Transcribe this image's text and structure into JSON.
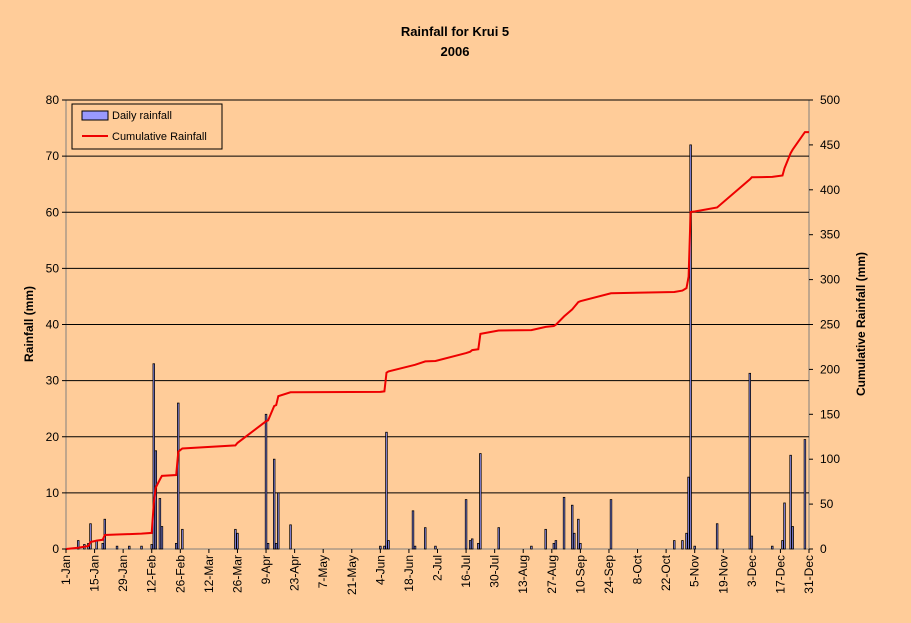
{
  "chart_data": {
    "type": "bar+line",
    "title": "Rainfall for Krui 5",
    "subtitle": "2006",
    "ylabel": "Rainfall (mm)",
    "y2label": "Cumulative Rainfall (mm)",
    "ylim": [
      0,
      80
    ],
    "y2lim": [
      0,
      500
    ],
    "yticks": [
      "0",
      "10",
      "20",
      "30",
      "40",
      "50",
      "60",
      "70",
      "80"
    ],
    "y2ticks": [
      "0",
      "50",
      "100",
      "150",
      "200",
      "250",
      "300",
      "350",
      "400",
      "450",
      "500"
    ],
    "xlim_day_of_year": [
      1,
      365
    ],
    "x_tick_labels": [
      "1-Jan",
      "15-Jan",
      "29-Jan",
      "12-Feb",
      "26-Feb",
      "12-Mar",
      "26-Mar",
      "9-Apr",
      "23-Apr",
      "7-May",
      "21-May",
      "4-Jun",
      "18-Jun",
      "2-Jul",
      "16-Jul",
      "30-Jul",
      "13-Aug",
      "27-Aug",
      "10-Sep",
      "24-Sep",
      "8-Oct",
      "22-Oct",
      "5-Nov",
      "19-Nov",
      "3-Dec",
      "17-Dec",
      "31-Dec"
    ],
    "grid": true,
    "legend_position": "top-left",
    "colors": {
      "bars": "#9999ff",
      "bar_outline": "#000000",
      "line": "#ee0000",
      "background": "#ffcc99"
    },
    "series": [
      {
        "name": "Daily rainfall",
        "kind": "bar",
        "axis": "left",
        "points": [
          {
            "day": 7,
            "value": 1.5
          },
          {
            "day": 10,
            "value": 0.8
          },
          {
            "day": 12,
            "value": 1.0
          },
          {
            "day": 13,
            "value": 4.5
          },
          {
            "day": 16,
            "value": 1.5
          },
          {
            "day": 19,
            "value": 1.0
          },
          {
            "day": 20,
            "value": 5.3
          },
          {
            "day": 26,
            "value": 0.5
          },
          {
            "day": 32,
            "value": 0.5
          },
          {
            "day": 38,
            "value": 0.5
          },
          {
            "day": 43,
            "value": 0.8
          },
          {
            "day": 44,
            "value": 33.0
          },
          {
            "day": 45,
            "value": 17.5
          },
          {
            "day": 47,
            "value": 9.0
          },
          {
            "day": 48,
            "value": 4.0
          },
          {
            "day": 55,
            "value": 1.0
          },
          {
            "day": 56,
            "value": 26.0
          },
          {
            "day": 58,
            "value": 3.5
          },
          {
            "day": 84,
            "value": 3.5
          },
          {
            "day": 85,
            "value": 2.8
          },
          {
            "day": 99,
            "value": 24.0
          },
          {
            "day": 100,
            "value": 1.0
          },
          {
            "day": 103,
            "value": 16.0
          },
          {
            "day": 104,
            "value": 1.0
          },
          {
            "day": 105,
            "value": 10.0
          },
          {
            "day": 111,
            "value": 4.3
          },
          {
            "day": 155,
            "value": 0.5
          },
          {
            "day": 157,
            "value": 0.5
          },
          {
            "day": 158,
            "value": 20.8
          },
          {
            "day": 159,
            "value": 1.5
          },
          {
            "day": 171,
            "value": 6.8
          },
          {
            "day": 172,
            "value": 0.5
          },
          {
            "day": 177,
            "value": 3.8
          },
          {
            "day": 182,
            "value": 0.5
          },
          {
            "day": 197,
            "value": 8.8
          },
          {
            "day": 199,
            "value": 1.5
          },
          {
            "day": 200,
            "value": 1.8
          },
          {
            "day": 203,
            "value": 1.0
          },
          {
            "day": 204,
            "value": 17.0
          },
          {
            "day": 213,
            "value": 3.8
          },
          {
            "day": 229,
            "value": 0.5
          },
          {
            "day": 236,
            "value": 3.5
          },
          {
            "day": 240,
            "value": 1.0
          },
          {
            "day": 241,
            "value": 1.5
          },
          {
            "day": 245,
            "value": 9.2
          },
          {
            "day": 249,
            "value": 7.8
          },
          {
            "day": 250,
            "value": 2.8
          },
          {
            "day": 252,
            "value": 5.3
          },
          {
            "day": 253,
            "value": 1.0
          },
          {
            "day": 268,
            "value": 8.8
          },
          {
            "day": 299,
            "value": 1.5
          },
          {
            "day": 303,
            "value": 1.5
          },
          {
            "day": 305,
            "value": 2.8
          },
          {
            "day": 306,
            "value": 12.8
          },
          {
            "day": 307,
            "value": 72.0
          },
          {
            "day": 309,
            "value": 0.5
          },
          {
            "day": 320,
            "value": 4.5
          },
          {
            "day": 336,
            "value": 31.3
          },
          {
            "day": 337,
            "value": 2.3
          },
          {
            "day": 347,
            "value": 0.5
          },
          {
            "day": 352,
            "value": 1.5
          },
          {
            "day": 353,
            "value": 8.2
          },
          {
            "day": 356,
            "value": 16.7
          },
          {
            "day": 357,
            "value": 4.0
          },
          {
            "day": 363,
            "value": 19.5
          }
        ]
      },
      {
        "name": "Cumulative Rainfall",
        "kind": "line",
        "axis": "right",
        "points": [
          {
            "day": 1,
            "value": 0
          },
          {
            "day": 7,
            "value": 1.5
          },
          {
            "day": 12,
            "value": 3.3
          },
          {
            "day": 13,
            "value": 7.8
          },
          {
            "day": 16,
            "value": 9.3
          },
          {
            "day": 19,
            "value": 10.3
          },
          {
            "day": 20,
            "value": 15.6
          },
          {
            "day": 26,
            "value": 16.1
          },
          {
            "day": 32,
            "value": 16.6
          },
          {
            "day": 38,
            "value": 17.1
          },
          {
            "day": 43,
            "value": 17.9
          },
          {
            "day": 44,
            "value": 50.9
          },
          {
            "day": 45,
            "value": 68.4
          },
          {
            "day": 47,
            "value": 77.4
          },
          {
            "day": 48,
            "value": 81.4
          },
          {
            "day": 55,
            "value": 82.4
          },
          {
            "day": 56,
            "value": 108.4
          },
          {
            "day": 58,
            "value": 111.9
          },
          {
            "day": 84,
            "value": 115.4
          },
          {
            "day": 85,
            "value": 118.2
          },
          {
            "day": 99,
            "value": 142.2
          },
          {
            "day": 100,
            "value": 143.2
          },
          {
            "day": 103,
            "value": 159.2
          },
          {
            "day": 104,
            "value": 160.2
          },
          {
            "day": 105,
            "value": 170.2
          },
          {
            "day": 111,
            "value": 174.5
          },
          {
            "day": 155,
            "value": 175.0
          },
          {
            "day": 157,
            "value": 175.5
          },
          {
            "day": 158,
            "value": 196.3
          },
          {
            "day": 159,
            "value": 197.8
          },
          {
            "day": 171,
            "value": 204.6
          },
          {
            "day": 172,
            "value": 205.1
          },
          {
            "day": 177,
            "value": 208.9
          },
          {
            "day": 182,
            "value": 209.4
          },
          {
            "day": 197,
            "value": 218.2
          },
          {
            "day": 199,
            "value": 219.7
          },
          {
            "day": 200,
            "value": 221.5
          },
          {
            "day": 203,
            "value": 222.5
          },
          {
            "day": 204,
            "value": 239.5
          },
          {
            "day": 213,
            "value": 243.3
          },
          {
            "day": 229,
            "value": 243.8
          },
          {
            "day": 236,
            "value": 247.3
          },
          {
            "day": 240,
            "value": 248.3
          },
          {
            "day": 241,
            "value": 249.8
          },
          {
            "day": 245,
            "value": 259.0
          },
          {
            "day": 249,
            "value": 266.8
          },
          {
            "day": 250,
            "value": 269.6
          },
          {
            "day": 252,
            "value": 274.9
          },
          {
            "day": 253,
            "value": 275.9
          },
          {
            "day": 268,
            "value": 284.7
          },
          {
            "day": 299,
            "value": 286.2
          },
          {
            "day": 303,
            "value": 287.7
          },
          {
            "day": 305,
            "value": 290.5
          },
          {
            "day": 306,
            "value": 303.3
          },
          {
            "day": 307,
            "value": 375.3
          },
          {
            "day": 309,
            "value": 375.8
          },
          {
            "day": 320,
            "value": 380.3
          },
          {
            "day": 336,
            "value": 411.6
          },
          {
            "day": 337,
            "value": 413.9
          },
          {
            "day": 347,
            "value": 414.4
          },
          {
            "day": 352,
            "value": 415.9
          },
          {
            "day": 353,
            "value": 424.1
          },
          {
            "day": 356,
            "value": 440.8
          },
          {
            "day": 357,
            "value": 444.8
          },
          {
            "day": 363,
            "value": 464.3
          },
          {
            "day": 365,
            "value": 464.3
          }
        ]
      }
    ]
  }
}
